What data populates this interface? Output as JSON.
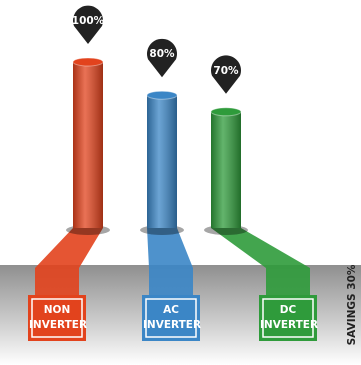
{
  "chart_data": {
    "type": "bar",
    "categories": [
      "NON INVERTER",
      "AC INVERTER",
      "DC INVERTER"
    ],
    "values": [
      100,
      80,
      70
    ],
    "value_labels": [
      "100%",
      "80%",
      "70%"
    ],
    "colors": [
      "#e2431d",
      "#3b86c6",
      "#2f9b3b"
    ],
    "annotation": "SAVINGS  30%"
  }
}
